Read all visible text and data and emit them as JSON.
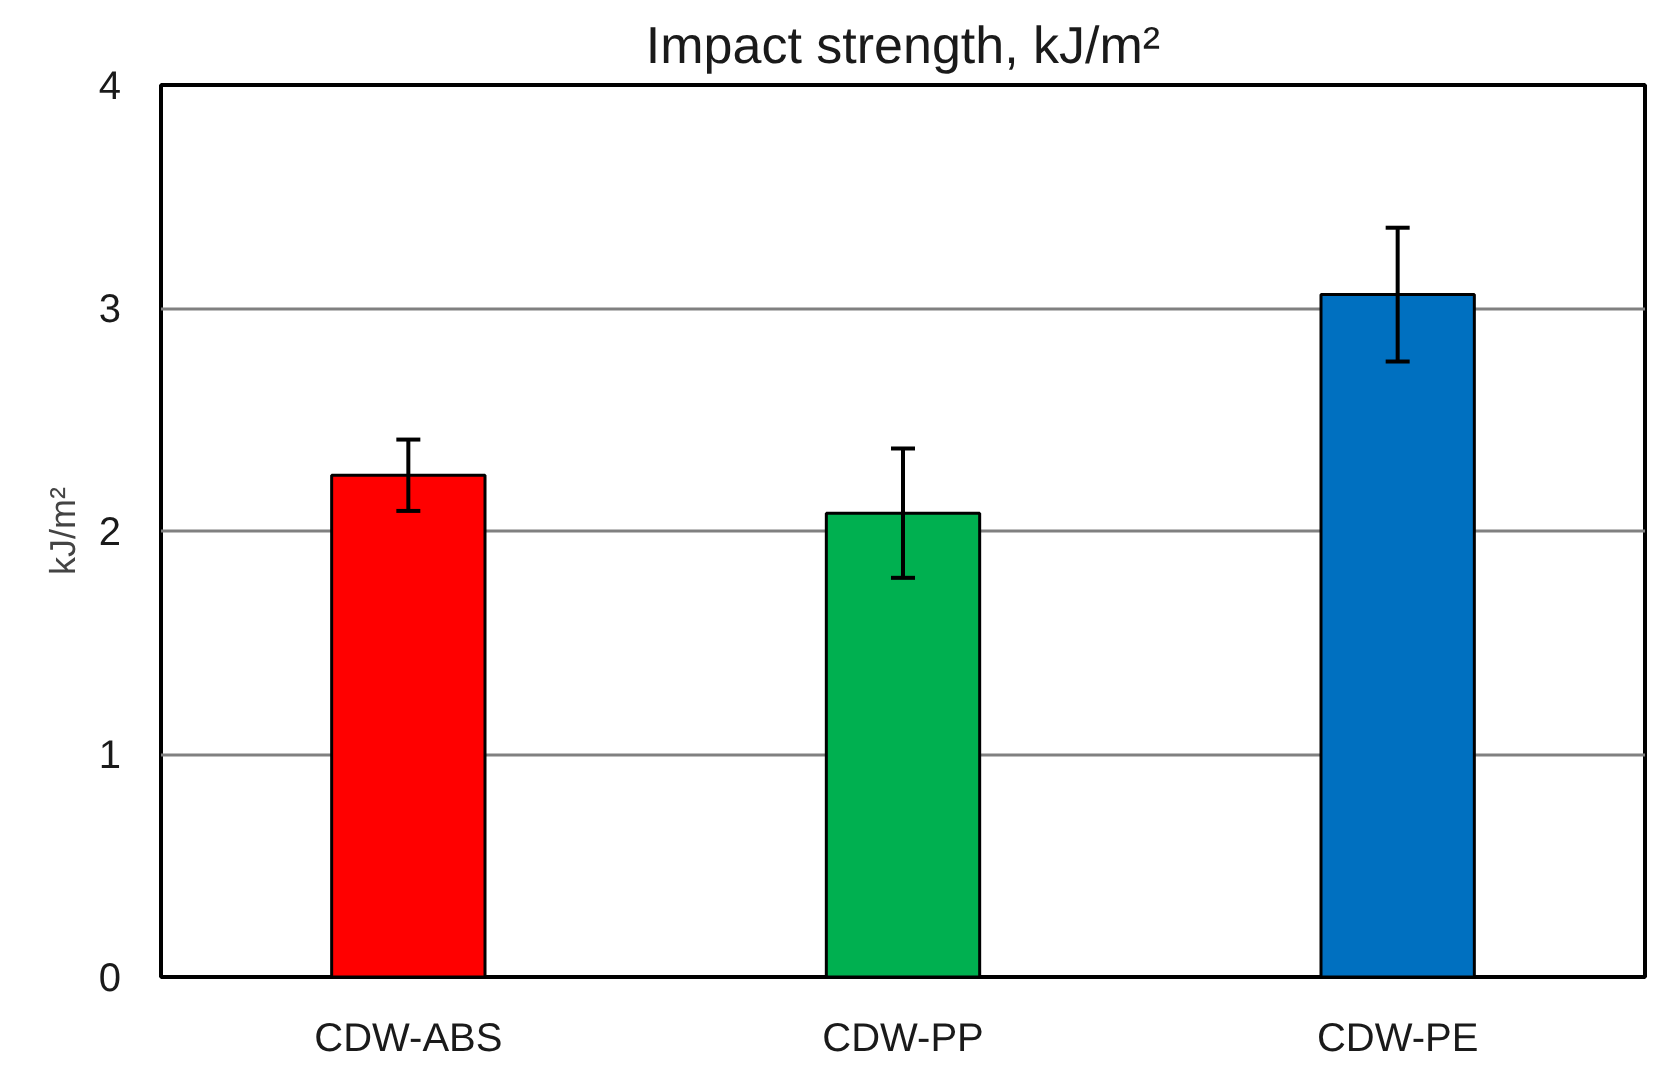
{
  "chart_data": {
    "type": "bar",
    "title": "Impact strength, kJ/m²",
    "ylabel": "kJ/m²",
    "categories": [
      "CDW-ABS",
      "CDW-PP",
      "CDW-PE"
    ],
    "values": [
      2.25,
      2.08,
      3.06
    ],
    "colors": [
      "#ff0000",
      "#00b050",
      "#0070c0"
    ],
    "errors": [
      0.16,
      0.29,
      0.3
    ],
    "ylim": [
      0,
      4
    ],
    "yticks": [
      0,
      1,
      2,
      3,
      4
    ],
    "grid": "y"
  }
}
